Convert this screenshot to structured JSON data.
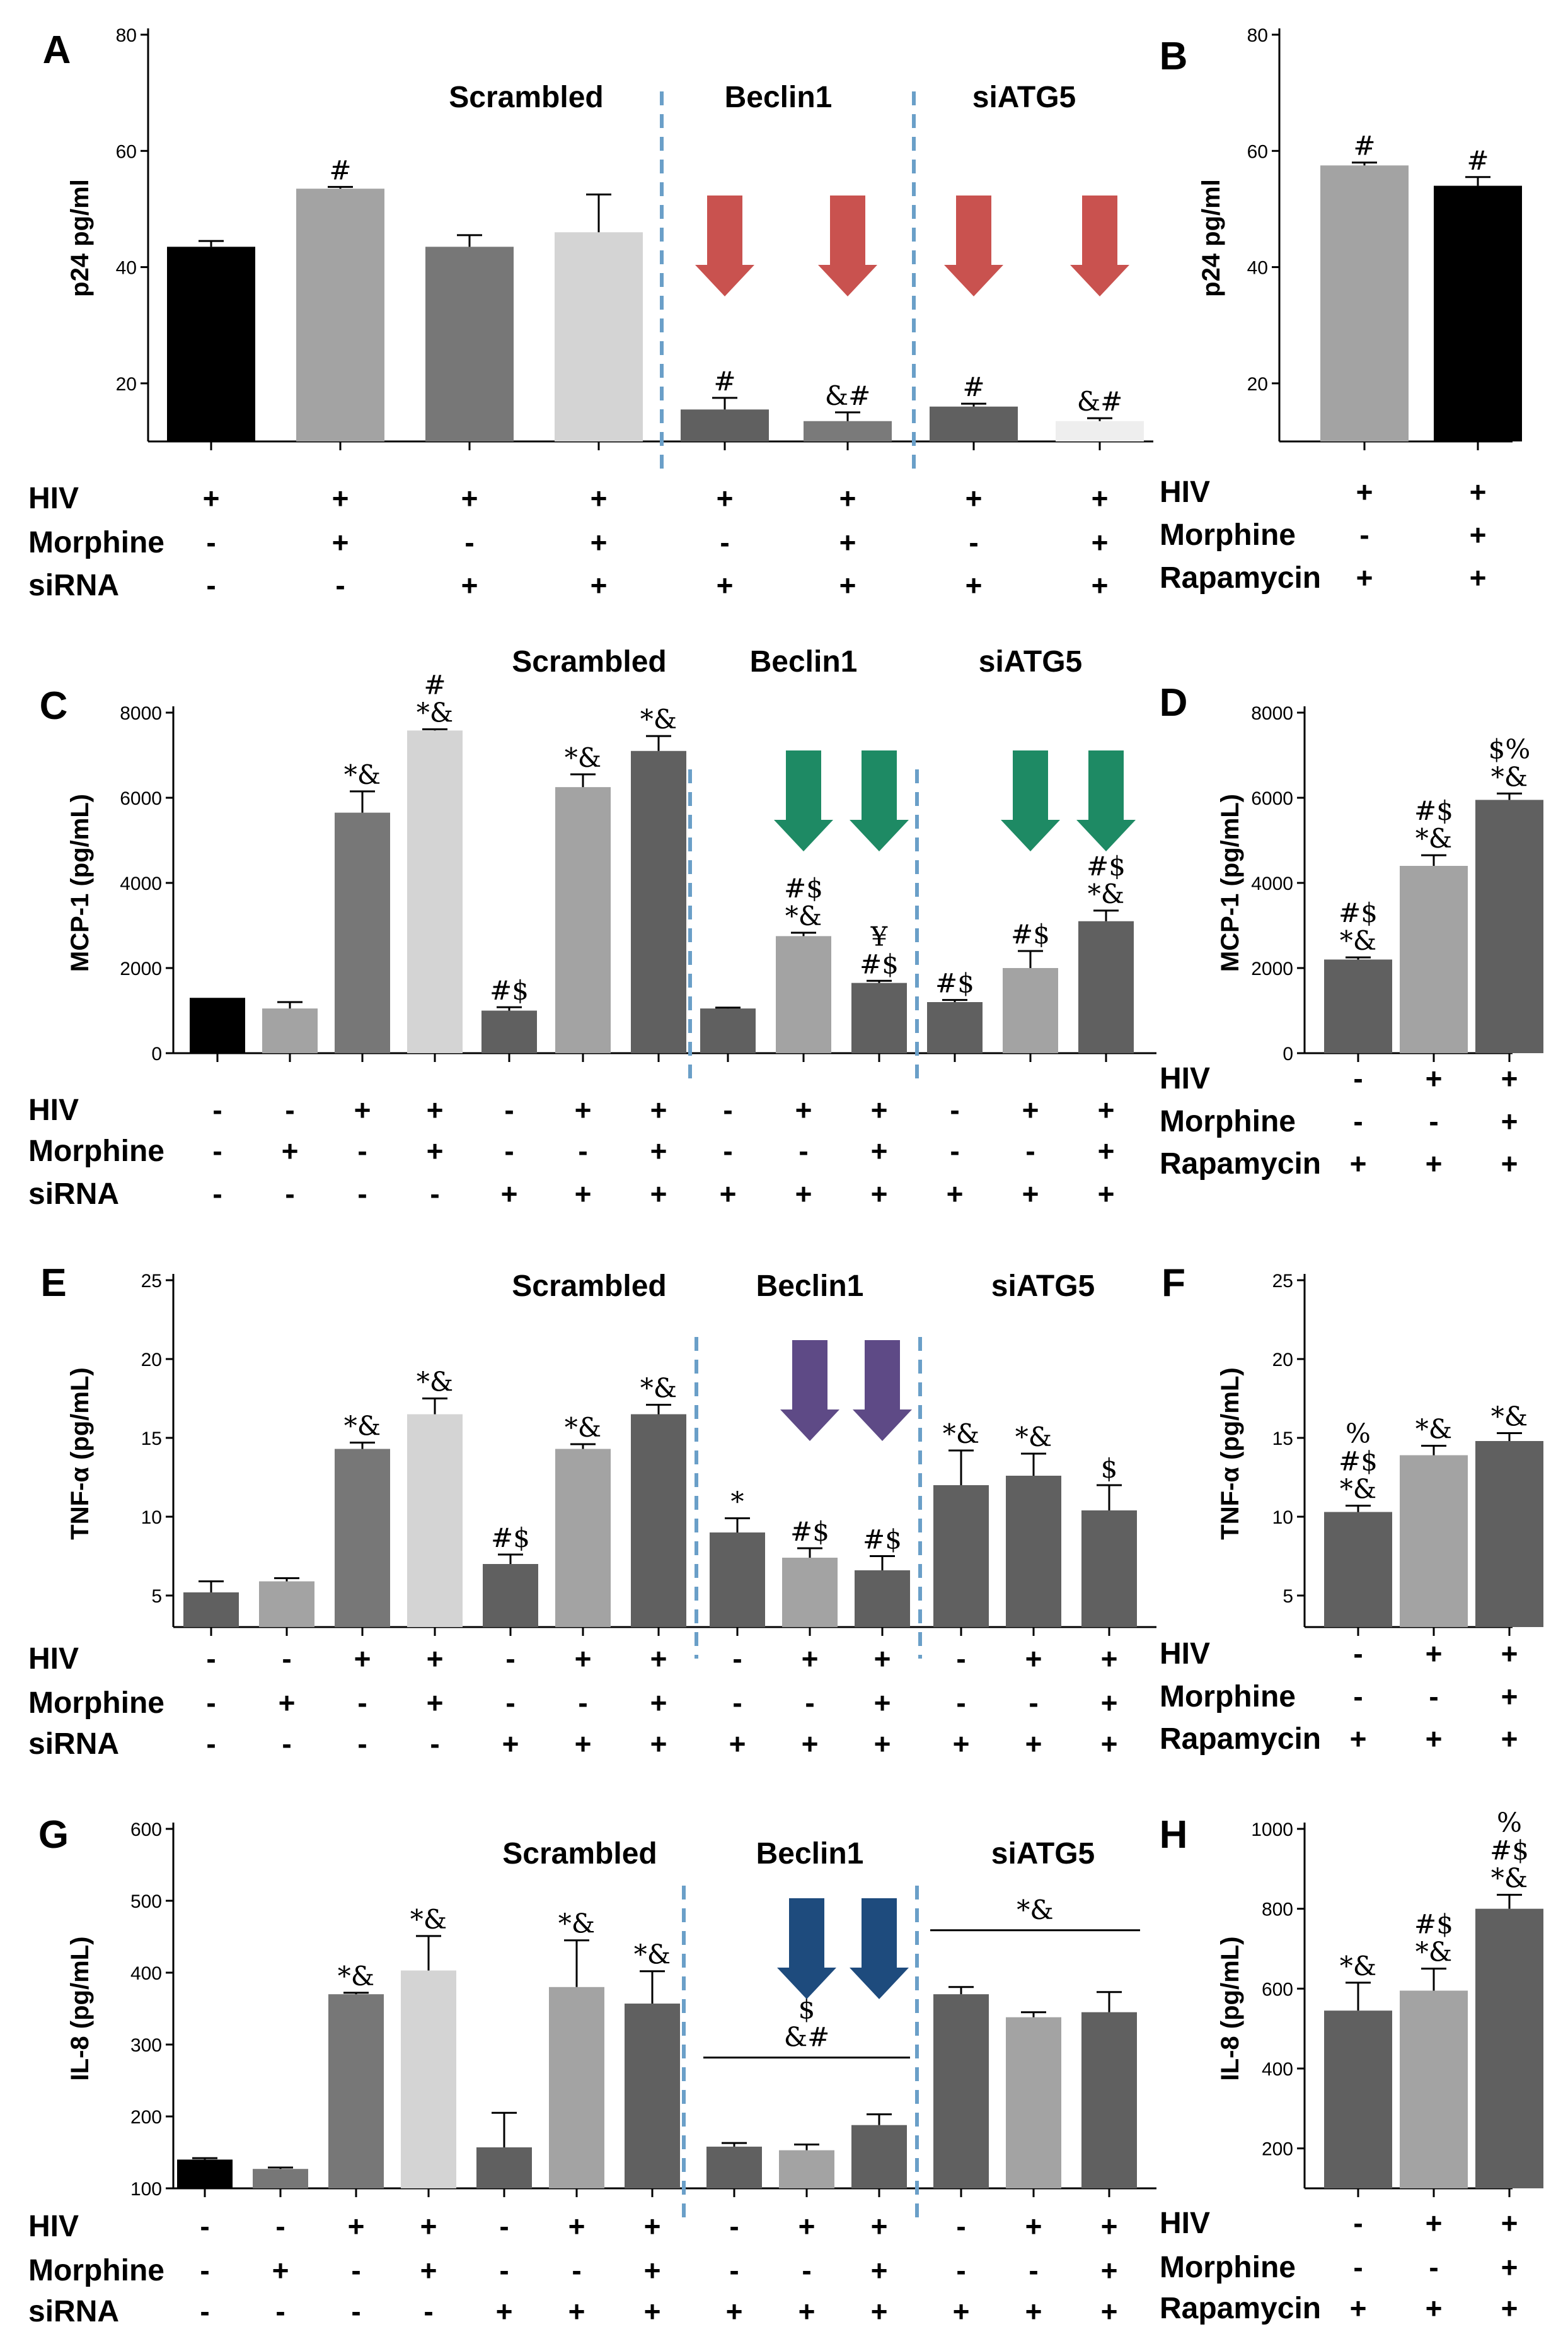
{
  "chart_data": [
    {
      "panel": "A",
      "type": "bar",
      "ylabel": "p24 pg/ml",
      "ylim": [
        10,
        80
      ],
      "yticks": [
        20,
        40,
        60,
        80
      ],
      "groups": [
        "Scrambled",
        "Beclin1",
        "siATG5"
      ],
      "values": [
        43.5,
        53.5,
        43.5,
        46,
        15.5,
        13.5,
        16,
        13.5
      ],
      "errors": [
        1,
        0.3,
        2,
        6.5,
        2,
        1.5,
        0.5,
        0.5
      ],
      "colors": [
        "#000000",
        "#a3a3a3",
        "#777777",
        "#d4d4d4",
        "#606060",
        "#7a7a7a",
        "#606060",
        "#eeeeee"
      ],
      "annotations": [
        "",
        "#",
        "",
        "",
        "#",
        "&#",
        "#",
        "&#"
      ],
      "arrows": [
        4,
        5,
        6,
        7
      ],
      "arrow_color": "#c9524f",
      "row_labels": [
        "HIV",
        "Morphine",
        "siRNA"
      ],
      "rows": [
        [
          "+",
          "+",
          "+",
          "+",
          "+",
          "+",
          "+",
          "+"
        ],
        [
          "-",
          "+",
          "-",
          "+",
          "-",
          "+",
          "-",
          "+"
        ],
        [
          "-",
          "-",
          "+",
          "+",
          "+",
          "+",
          "+",
          "+"
        ]
      ]
    },
    {
      "panel": "B",
      "type": "bar",
      "ylabel": "p24 pg/ml",
      "ylim": [
        10,
        80
      ],
      "yticks": [
        20,
        40,
        60,
        80
      ],
      "values": [
        57.5,
        54
      ],
      "errors": [
        0.5,
        1.5
      ],
      "colors": [
        "#a3a3a3",
        "#000000"
      ],
      "annotations": [
        "#",
        "#"
      ],
      "row_labels": [
        "HIV",
        "Morphine",
        "Rapamycin"
      ],
      "rows": [
        [
          "+",
          "+"
        ],
        [
          "-",
          "+"
        ],
        [
          "+",
          "+"
        ]
      ]
    },
    {
      "panel": "C",
      "type": "bar",
      "ylabel": "MCP-1 (pg/mL)",
      "ylim": [
        0,
        8000
      ],
      "yticks": [
        0,
        2000,
        4000,
        6000,
        8000
      ],
      "groups": [
        "Scrambled",
        "Beclin1",
        "siATG5"
      ],
      "values": [
        1300,
        1050,
        5650,
        7580,
        1000,
        6250,
        7100,
        1050,
        2750,
        1650,
        1200,
        2000,
        3100
      ],
      "errors": [
        0,
        150,
        500,
        30,
        80,
        300,
        350,
        20,
        80,
        50,
        50,
        400,
        250
      ],
      "colors": [
        "#000000",
        "#a3a3a3",
        "#777777",
        "#d4d4d4",
        "#606060",
        "#a3a3a3",
        "#606060",
        "#606060",
        "#a3a3a3",
        "#606060",
        "#606060",
        "#a3a3a3",
        "#606060"
      ],
      "annotations": [
        "",
        "",
        "*&",
        "#\n*&",
        "#$",
        "*&",
        "*&",
        "",
        "#$\n*&",
        "¥\n#$",
        "#$",
        "#$",
        "#$\n*&"
      ],
      "arrows": [
        8,
        9,
        11,
        12
      ],
      "arrow_color": "#1e8a64",
      "row_labels": [
        "HIV",
        "Morphine",
        "siRNA"
      ],
      "rows": [
        [
          "-",
          "-",
          "+",
          "+",
          "-",
          "+",
          "+",
          "-",
          "+",
          "+",
          "-",
          "+",
          "+"
        ],
        [
          "-",
          "+",
          "-",
          "+",
          "-",
          "-",
          "+",
          "-",
          "-",
          "+",
          "-",
          "-",
          "+"
        ],
        [
          "-",
          "-",
          "-",
          "-",
          "+",
          "+",
          "+",
          "+",
          "+",
          "+",
          "+",
          "+",
          "+"
        ]
      ]
    },
    {
      "panel": "D",
      "type": "bar",
      "ylabel": "MCP-1 (pg/mL)",
      "ylim": [
        0,
        8000
      ],
      "yticks": [
        0,
        2000,
        4000,
        6000,
        8000
      ],
      "values": [
        2200,
        4400,
        5950
      ],
      "errors": [
        50,
        250,
        150
      ],
      "colors": [
        "#606060",
        "#a3a3a3",
        "#606060"
      ],
      "annotations": [
        "#$\n*&",
        "#$\n*&",
        "$%\n*&"
      ],
      "row_labels": [
        "HIV",
        "Morphine",
        "Rapamycin"
      ],
      "rows": [
        [
          "-",
          "+",
          "+"
        ],
        [
          "-",
          "-",
          "+"
        ],
        [
          "+",
          "+",
          "+"
        ]
      ]
    },
    {
      "panel": "E",
      "type": "bar",
      "ylabel": "TNF-α (pg/mL)",
      "ylim": [
        3,
        25
      ],
      "yticks": [
        5,
        10,
        15,
        20,
        25
      ],
      "groups": [
        "Scrambled",
        "Beclin1",
        "siATG5"
      ],
      "values": [
        5.2,
        5.9,
        14.3,
        16.5,
        7.0,
        14.3,
        16.5,
        9.0,
        7.4,
        6.6,
        12.0,
        12.6,
        10.4
      ],
      "errors": [
        0.7,
        0.2,
        0.4,
        1.0,
        0.6,
        0.3,
        0.6,
        0.9,
        0.6,
        0.9,
        2.2,
        1.4,
        1.6
      ],
      "colors": [
        "#606060",
        "#a3a3a3",
        "#777777",
        "#d4d4d4",
        "#606060",
        "#a3a3a3",
        "#606060",
        "#606060",
        "#a3a3a3",
        "#606060",
        "#606060",
        "#606060",
        "#606060"
      ],
      "annotations": [
        "",
        "",
        "*&",
        "*&",
        "#$",
        "*&",
        "*&",
        "*",
        "#$",
        "#$",
        "*&",
        "*&",
        "$"
      ],
      "arrows": [
        8,
        9
      ],
      "arrow_color": "#5e4a86",
      "row_labels": [
        "HIV",
        "Morphine",
        "siRNA"
      ],
      "rows": [
        [
          "-",
          "-",
          "+",
          "+",
          "-",
          "+",
          "+",
          "-",
          "+",
          "+",
          "-",
          "+",
          "+"
        ],
        [
          "-",
          "+",
          "-",
          "+",
          "-",
          "-",
          "+",
          "-",
          "-",
          "+",
          "-",
          "-",
          "+"
        ],
        [
          "-",
          "-",
          "-",
          "-",
          "+",
          "+",
          "+",
          "+",
          "+",
          "+",
          "+",
          "+",
          "+"
        ]
      ]
    },
    {
      "panel": "F",
      "type": "bar",
      "ylabel": "TNF-α (pg/mL)",
      "ylim": [
        3,
        25
      ],
      "yticks": [
        5,
        10,
        15,
        20,
        25
      ],
      "values": [
        10.3,
        13.9,
        14.8
      ],
      "errors": [
        0.4,
        0.6,
        0.5
      ],
      "colors": [
        "#606060",
        "#a3a3a3",
        "#606060"
      ],
      "annotations": [
        "%\n#$\n*&",
        "*&",
        "*&"
      ],
      "row_labels": [
        "HIV",
        "Morphine",
        "Rapamycin"
      ],
      "rows": [
        [
          "-",
          "+",
          "+"
        ],
        [
          "-",
          "-",
          "+"
        ],
        [
          "+",
          "+",
          "+"
        ]
      ]
    },
    {
      "panel": "G",
      "type": "bar",
      "ylabel": "IL-8 (pg/mL)",
      "ylim": [
        100,
        600
      ],
      "yticks": [
        100,
        200,
        300,
        400,
        500,
        600
      ],
      "groups": [
        "Scrambled",
        "Beclin1",
        "siATG5"
      ],
      "values": [
        140,
        127,
        370,
        403,
        157,
        380,
        357,
        158,
        153,
        188,
        370,
        338,
        345
      ],
      "errors": [
        2,
        2,
        2,
        48,
        48,
        65,
        45,
        5,
        8,
        15,
        10,
        7,
        28
      ],
      "colors": [
        "#000000",
        "#777777",
        "#777777",
        "#d4d4d4",
        "#606060",
        "#a3a3a3",
        "#606060",
        "#606060",
        "#a3a3a3",
        "#606060",
        "#606060",
        "#a3a3a3",
        "#606060"
      ],
      "annotations": [
        "",
        "",
        "*&",
        "*&",
        "",
        "*&",
        "*&",
        "",
        "",
        "",
        "",
        "",
        ""
      ],
      "group_annotations": [
        {
          "from": 7,
          "to": 9,
          "text": "$\n&#"
        },
        {
          "from": 10,
          "to": 12,
          "text": "*&"
        }
      ],
      "arrows": [
        8,
        9
      ],
      "arrow_color": "#1e4b7d",
      "row_labels": [
        "HIV",
        "Morphine",
        "siRNA"
      ],
      "rows": [
        [
          "-",
          "-",
          "+",
          "+",
          "-",
          "+",
          "+",
          "-",
          "+",
          "+",
          "-",
          "+",
          "+"
        ],
        [
          "-",
          "+",
          "-",
          "+",
          "-",
          "-",
          "+",
          "-",
          "-",
          "+",
          "-",
          "-",
          "+"
        ],
        [
          "-",
          "-",
          "-",
          "-",
          "+",
          "+",
          "+",
          "+",
          "+",
          "+",
          "+",
          "+",
          "+"
        ]
      ]
    },
    {
      "panel": "H",
      "type": "bar",
      "ylabel": "IL-8 (pg/mL)",
      "ylim": [
        100,
        1000
      ],
      "yticks": [
        200,
        400,
        600,
        800,
        1000
      ],
      "values": [
        545,
        595,
        800
      ],
      "errors": [
        70,
        55,
        35
      ],
      "colors": [
        "#606060",
        "#a3a3a3",
        "#606060"
      ],
      "annotations": [
        "*&",
        "#$\n*&",
        "%\n#$\n*&"
      ],
      "row_labels": [
        "HIV",
        "Morphine",
        "Rapamycin"
      ],
      "rows": [
        [
          "-",
          "+",
          "+"
        ],
        [
          "-",
          "-",
          "+"
        ],
        [
          "+",
          "+",
          "+"
        ]
      ]
    }
  ]
}
